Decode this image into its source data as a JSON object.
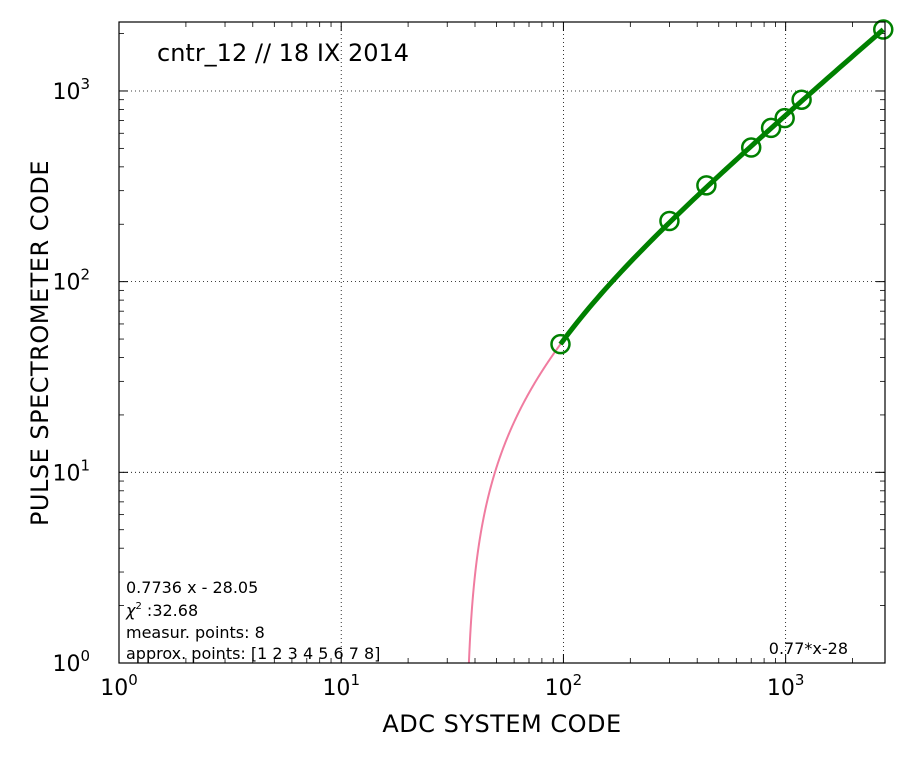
{
  "chart_data": {
    "type": "scatter",
    "title": "cntr_12 // 18 IX 2014",
    "xlabel": "ADC  SYSTEM  CODE",
    "ylabel": "PULSE  SPECTROMETER  CODE",
    "xscale": "log",
    "yscale": "log",
    "xlim": [
      1,
      2800
    ],
    "ylim": [
      1,
      2300
    ],
    "grid": true,
    "x_ticks": [
      {
        "value": 1,
        "base": "10",
        "exp": "0"
      },
      {
        "value": 10,
        "base": "10",
        "exp": "1"
      },
      {
        "value": 100,
        "base": "10",
        "exp": "2"
      },
      {
        "value": 1000,
        "base": "10",
        "exp": "3"
      }
    ],
    "y_ticks": [
      {
        "value": 1,
        "base": "10",
        "exp": "0"
      },
      {
        "value": 10,
        "base": "10",
        "exp": "1"
      },
      {
        "value": 100,
        "base": "10",
        "exp": "2"
      },
      {
        "value": 1000,
        "base": "10",
        "exp": "3"
      }
    ],
    "points": {
      "x": [
        97,
        300,
        440,
        700,
        860,
        990,
        1180,
        2750
      ],
      "y": [
        47,
        208,
        320,
        505,
        640,
        720,
        900,
        2100
      ],
      "color": "#008000",
      "marker": "open-circle"
    },
    "fit_line": {
      "color": "#008000",
      "slope": 0.7736,
      "intercept": -28.05
    },
    "curve": {
      "color": "#f07ca0",
      "slope": 0.7736,
      "intercept": -28.05
    },
    "annotations": {
      "equation": "0.7736 x - 28.05",
      "chi2_symbol": "χ",
      "chi2_sup": "2",
      "chi2_value": " :32.68",
      "measur_points": "measur. points: 8",
      "approx_points": "approx. points: [1 2 3 4 5 6 7 8]",
      "fit_label": "0.77*x-28"
    }
  }
}
